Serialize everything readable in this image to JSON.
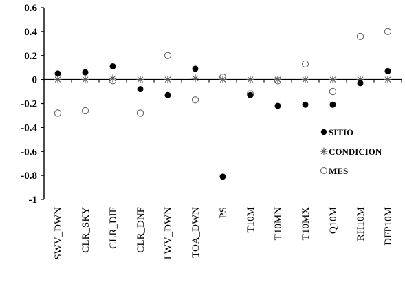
{
  "chart_data": {
    "type": "scatter",
    "categories": [
      "SWV_DWN",
      "CLR_SKY",
      "CLR_DIF",
      "CLR_DNF",
      "LWV_DWN",
      "TOA_DWN",
      "PS",
      "T10M",
      "T10MN",
      "T10MX",
      "Q10M",
      "RH10M",
      "DFP10M"
    ],
    "ylim": [
      -1,
      0.6
    ],
    "yticks": [
      "0.6",
      "0.4",
      "0.2",
      "0",
      "-0.2",
      "-0.4",
      "-0.6",
      "-0.8",
      "-1"
    ],
    "ytick_values": [
      0.6,
      0.4,
      0.2,
      0,
      -0.2,
      -0.4,
      -0.6,
      -0.8,
      -1
    ],
    "grid": false,
    "legend_position": "right",
    "series": [
      {
        "name": "SITIO",
        "marker": "filled-circle",
        "color": "#000000",
        "values": [
          0.05,
          0.06,
          0.11,
          -0.08,
          -0.13,
          0.09,
          -0.81,
          -0.13,
          -0.22,
          -0.21,
          -0.21,
          -0.03,
          0.07
        ]
      },
      {
        "name": "CONDICION",
        "marker": "asterisk",
        "color": "#555555",
        "values": [
          0,
          0,
          0.01,
          0,
          0,
          0.01,
          0,
          0,
          0,
          0,
          0,
          0,
          0
        ]
      },
      {
        "name": "MES",
        "marker": "open-circle",
        "color": "#666666",
        "values": [
          -0.28,
          -0.26,
          -0.01,
          -0.28,
          0.2,
          -0.17,
          0.02,
          -0.12,
          -0.01,
          0.13,
          -0.1,
          0.36,
          0.4
        ]
      }
    ]
  }
}
